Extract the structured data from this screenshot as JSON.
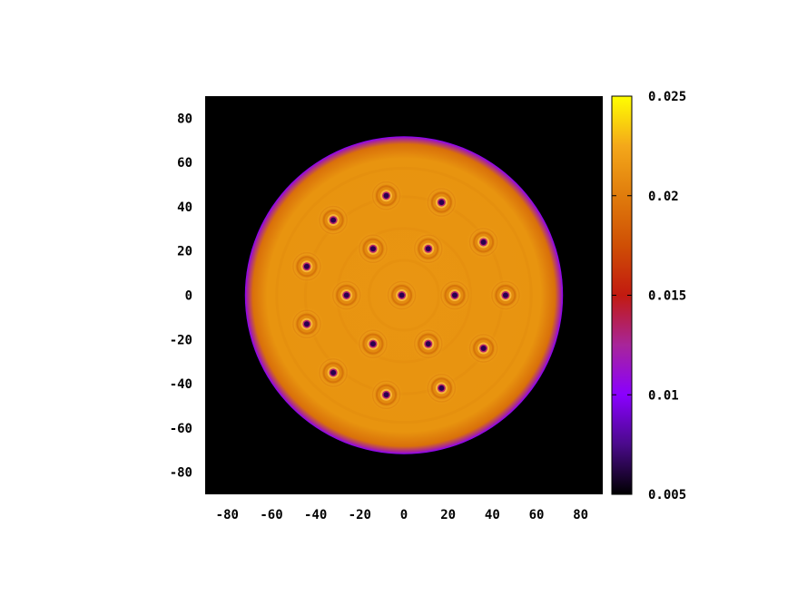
{
  "chart_data": {
    "type": "heatmap",
    "title": "",
    "xlabel": "",
    "ylabel": "",
    "xlim": [
      -90,
      90
    ],
    "ylim": [
      -90,
      90
    ],
    "x_ticks": [
      "-80",
      "-60",
      "-40",
      "-20",
      "0",
      "20",
      "40",
      "60",
      "80"
    ],
    "x_tick_values": [
      -80,
      -60,
      -40,
      -20,
      0,
      20,
      40,
      60,
      80
    ],
    "y_ticks": [
      "80",
      "60",
      "40",
      "20",
      "0",
      "-20",
      "-40",
      "-60",
      "-80"
    ],
    "y_tick_values": [
      80,
      60,
      40,
      20,
      0,
      -20,
      -40,
      -60,
      -80
    ],
    "colorbar": {
      "range": [
        0.005,
        0.025
      ],
      "ticks": [
        "0.025",
        "0.02",
        "0.015",
        "0.01",
        "0.005"
      ],
      "tick_values": [
        0.025,
        0.02,
        0.015,
        0.01,
        0.005
      ],
      "colormap": [
        {
          "value": 0.005,
          "color": "#000000"
        },
        {
          "value": 0.0075,
          "color": "#4a0a8a"
        },
        {
          "value": 0.01,
          "color": "#8a00ff"
        },
        {
          "value": 0.0125,
          "color": "#a8259a"
        },
        {
          "value": 0.015,
          "color": "#c21a10"
        },
        {
          "value": 0.0175,
          "color": "#cf4f05"
        },
        {
          "value": 0.02,
          "color": "#e07c0c"
        },
        {
          "value": 0.0225,
          "color": "#f4a81a"
        },
        {
          "value": 0.025,
          "color": "#ffff00"
        }
      ]
    },
    "background_value": 0.005,
    "disc": {
      "center": [
        0,
        0
      ],
      "radius": 72,
      "interior_value": 0.021,
      "edge_value": 0.01
    },
    "vortices": [
      {
        "x": -8,
        "y": 45
      },
      {
        "x": 17,
        "y": 42
      },
      {
        "x": -32,
        "y": 34
      },
      {
        "x": -14,
        "y": 21
      },
      {
        "x": 11,
        "y": 21
      },
      {
        "x": 36,
        "y": 24
      },
      {
        "x": -44,
        "y": 13
      },
      {
        "x": -26,
        "y": 0
      },
      {
        "x": -1,
        "y": 0
      },
      {
        "x": 23,
        "y": 0
      },
      {
        "x": 46,
        "y": 0
      },
      {
        "x": -44,
        "y": -13
      },
      {
        "x": -14,
        "y": -22
      },
      {
        "x": 11,
        "y": -22
      },
      {
        "x": 36,
        "y": -24
      },
      {
        "x": -32,
        "y": -35
      },
      {
        "x": -8,
        "y": -45
      },
      {
        "x": 17,
        "y": -42
      }
    ]
  }
}
